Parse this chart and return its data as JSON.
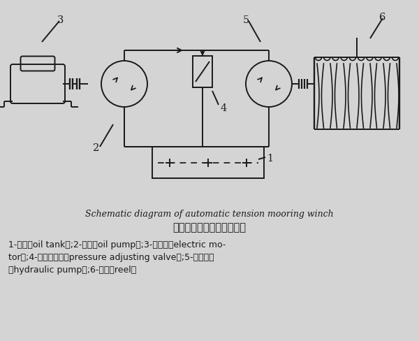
{
  "bg_color": "#d4d4d4",
  "line_color": "#1a1a1a",
  "title_en": "Schematic diagram of automatic tension mooring winch",
  "title_cn": "自动张力给缆机原理示意图",
  "caption_line1": "1-油筱（oil tank）;2-油泵（oil pump）;3-电动机（electric mo-",
  "caption_line2": "tor）;4-压力调节阀（pressure adjusting valve）;5-液压马达",
  "caption_line3": "（hydraulic pump）;6-卷筒（reel）",
  "lw": 1.4
}
